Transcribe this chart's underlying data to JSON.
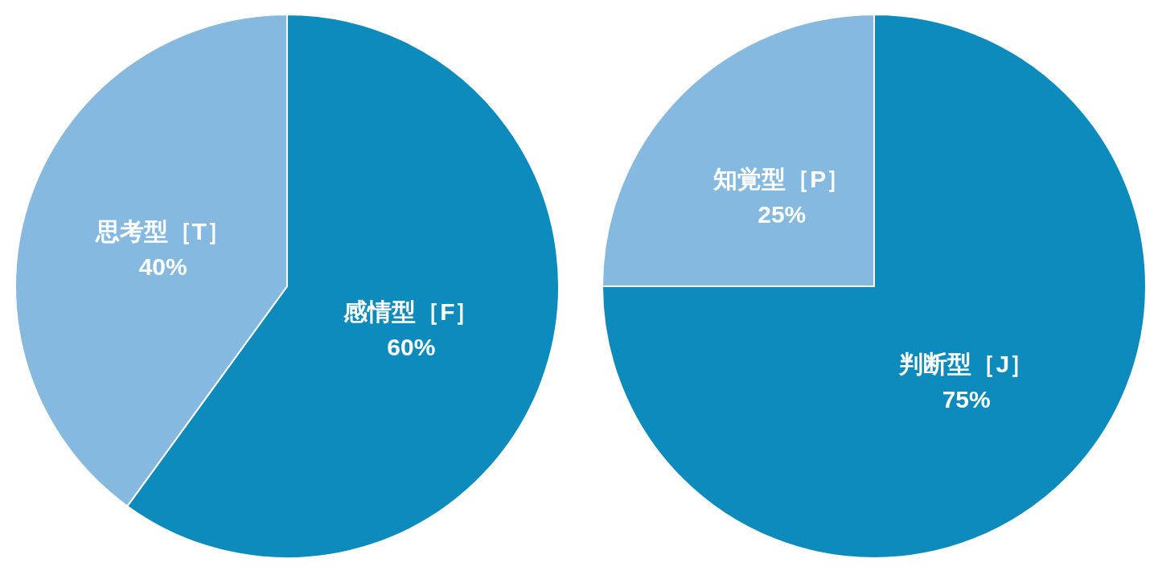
{
  "chart_data": [
    {
      "type": "pie",
      "categories": [
        "感情型［F］",
        "思考型［T］"
      ],
      "values": [
        60,
        40
      ],
      "colors": [
        "#0e8bbd",
        "#85b9df"
      ],
      "value_labels": [
        "60%",
        "40%"
      ]
    },
    {
      "type": "pie",
      "categories": [
        "判断型［J］",
        "知覚型［P］"
      ],
      "values": [
        75,
        25
      ],
      "colors": [
        "#0e8bbd",
        "#85b9df"
      ],
      "value_labels": [
        "75%",
        "25%"
      ]
    }
  ]
}
